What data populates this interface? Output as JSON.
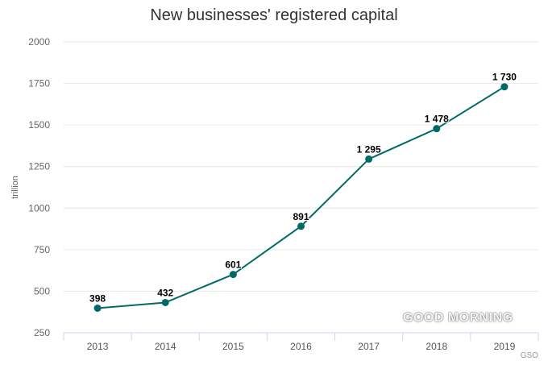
{
  "chart_data": {
    "type": "line",
    "title": "New businesses' registered capital",
    "xlabel": "",
    "ylabel": "trillion",
    "categories": [
      "2013",
      "2014",
      "2015",
      "2016",
      "2017",
      "2018",
      "2019"
    ],
    "series": [
      {
        "values": [
          398,
          432,
          601,
          891,
          1295,
          1478,
          1730
        ],
        "labels": [
          "398",
          "432",
          "601",
          "891",
          "1 295",
          "1 478",
          "1 730"
        ]
      }
    ],
    "ylim": [
      250,
      2000
    ],
    "yticks": [
      250,
      500,
      750,
      1000,
      1250,
      1500,
      1750,
      2000
    ],
    "grid": true,
    "legend": "none",
    "colors": {
      "line": "#006b66",
      "grid": "#e6e6e6",
      "axis": "#ccd6eb",
      "text": "#333333"
    },
    "credit": "GSO"
  },
  "watermark": "GOOD MORNING"
}
